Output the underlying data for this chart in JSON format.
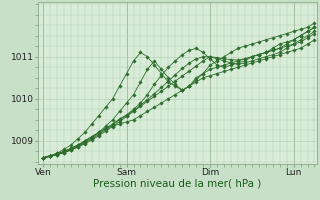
{
  "bg_color": "#c8e0c8",
  "plot_bg_color": "#d8ecd8",
  "grid_color": "#b0ccb0",
  "line_color": "#2d6e2d",
  "marker_color": "#2d6e2d",
  "xlabel": "Pression niveau de la mer( hPa )",
  "xlabel_fontsize": 7.5,
  "yticks": [
    1009,
    1010,
    1011
  ],
  "ylim": [
    1008.45,
    1012.3
  ],
  "xtick_labels": [
    "Ven",
    "Sam",
    "Dim",
    "Lun"
  ],
  "xtick_positions": [
    0,
    36,
    72,
    108
  ],
  "xlim": [
    -2,
    118
  ],
  "sparse_series": [
    {
      "x": [
        0,
        3,
        6,
        9,
        12,
        15,
        18,
        21,
        24,
        27,
        30,
        33,
        36,
        39,
        42,
        45,
        48,
        51,
        54,
        57,
        60,
        63,
        66,
        69,
        72,
        75,
        78,
        81,
        84,
        87,
        90,
        93,
        96,
        99,
        102,
        105,
        108,
        111,
        114,
        117
      ],
      "y": [
        1008.6,
        1008.65,
        1008.7,
        1008.75,
        1008.82,
        1008.9,
        1009.0,
        1009.1,
        1009.2,
        1009.3,
        1009.35,
        1009.4,
        1009.45,
        1009.5,
        1009.6,
        1009.7,
        1009.8,
        1009.9,
        1010.0,
        1010.1,
        1010.2,
        1010.3,
        1010.5,
        1010.6,
        1010.8,
        1010.9,
        1011.0,
        1011.1,
        1011.2,
        1011.25,
        1011.3,
        1011.35,
        1011.4,
        1011.45,
        1011.5,
        1011.55,
        1011.6,
        1011.65,
        1011.7,
        1011.8
      ]
    },
    {
      "x": [
        0,
        3,
        6,
        9,
        12,
        15,
        18,
        21,
        24,
        27,
        30,
        33,
        36,
        39,
        42,
        45,
        48,
        51,
        54,
        57,
        60,
        63,
        66,
        69,
        72,
        75,
        78,
        81,
        84,
        87,
        90,
        93,
        96,
        99,
        102,
        105,
        108,
        111,
        114,
        117
      ],
      "y": [
        1008.6,
        1008.65,
        1008.7,
        1008.8,
        1008.9,
        1009.05,
        1009.2,
        1009.4,
        1009.6,
        1009.8,
        1010.0,
        1010.3,
        1010.6,
        1010.9,
        1011.1,
        1011.0,
        1010.8,
        1010.6,
        1010.4,
        1010.3,
        1010.2,
        1010.3,
        1010.4,
        1010.5,
        1010.55,
        1010.6,
        1010.65,
        1010.7,
        1010.75,
        1010.8,
        1010.85,
        1010.9,
        1010.95,
        1011.0,
        1011.05,
        1011.1,
        1011.15,
        1011.2,
        1011.3,
        1011.4
      ]
    },
    {
      "x": [
        0,
        3,
        6,
        9,
        12,
        15,
        18,
        21,
        24,
        27,
        30,
        33,
        36,
        39,
        42,
        45,
        48,
        51,
        54,
        57,
        60,
        63,
        66,
        69,
        72,
        75,
        78,
        81,
        84,
        87,
        90,
        93,
        96,
        99,
        102,
        105,
        108,
        111,
        114,
        117
      ],
      "y": [
        1008.6,
        1008.63,
        1008.68,
        1008.75,
        1008.82,
        1008.9,
        1009.0,
        1009.1,
        1009.2,
        1009.35,
        1009.5,
        1009.7,
        1009.9,
        1010.1,
        1010.4,
        1010.7,
        1010.9,
        1010.7,
        1010.5,
        1010.35,
        1010.2,
        1010.3,
        1010.45,
        1010.6,
        1010.7,
        1010.75,
        1010.8,
        1010.85,
        1010.9,
        1010.95,
        1011.0,
        1011.05,
        1011.1,
        1011.15,
        1011.2,
        1011.25,
        1011.3,
        1011.35,
        1011.45,
        1011.55
      ]
    },
    {
      "x": [
        0,
        3,
        6,
        9,
        12,
        15,
        18,
        21,
        24,
        27,
        30,
        33,
        36,
        39,
        42,
        45,
        48,
        51,
        54,
        57,
        60,
        63,
        66,
        69,
        72,
        75,
        78,
        81,
        84,
        87,
        90,
        93,
        96,
        99,
        102,
        105,
        108,
        111,
        114,
        117
      ],
      "y": [
        1008.6,
        1008.63,
        1008.68,
        1008.73,
        1008.8,
        1008.88,
        1008.97,
        1009.07,
        1009.18,
        1009.3,
        1009.4,
        1009.52,
        1009.62,
        1009.75,
        1009.9,
        1010.1,
        1010.35,
        1010.55,
        1010.75,
        1010.9,
        1011.05,
        1011.15,
        1011.2,
        1011.1,
        1010.95,
        1010.8,
        1010.75,
        1010.8,
        1010.85,
        1010.9,
        1011.0,
        1011.05,
        1011.1,
        1011.2,
        1011.3,
        1011.35,
        1011.4,
        1011.5,
        1011.6,
        1011.7
      ]
    },
    {
      "x": [
        0,
        3,
        6,
        9,
        12,
        15,
        18,
        21,
        24,
        27,
        30,
        33,
        36,
        39,
        42,
        45,
        48,
        51,
        54,
        57,
        60,
        63,
        66,
        69,
        72,
        75,
        78,
        81,
        84,
        87,
        90,
        93,
        96,
        99,
        102,
        105,
        108,
        111,
        114,
        117
      ],
      "y": [
        1008.6,
        1008.63,
        1008.67,
        1008.72,
        1008.78,
        1008.86,
        1008.95,
        1009.05,
        1009.15,
        1009.27,
        1009.38,
        1009.5,
        1009.6,
        1009.72,
        1009.85,
        1009.98,
        1010.12,
        1010.27,
        1010.42,
        1010.57,
        1010.72,
        1010.85,
        1010.95,
        1011.0,
        1011.0,
        1010.95,
        1010.9,
        1010.85,
        1010.82,
        1010.85,
        1010.9,
        1010.95,
        1011.0,
        1011.05,
        1011.1,
        1011.2,
        1011.3,
        1011.4,
        1011.5,
        1011.6
      ]
    },
    {
      "x": [
        0,
        3,
        6,
        9,
        12,
        15,
        18,
        21,
        24,
        27,
        30,
        33,
        36,
        39,
        42,
        45,
        48,
        51,
        54,
        57,
        60,
        63,
        66,
        69,
        72,
        75,
        78,
        81,
        84,
        87,
        90,
        93,
        96,
        99,
        102,
        105,
        108,
        111,
        114,
        117
      ],
      "y": [
        1008.6,
        1008.63,
        1008.67,
        1008.72,
        1008.78,
        1008.85,
        1008.93,
        1009.02,
        1009.12,
        1009.23,
        1009.34,
        1009.46,
        1009.58,
        1009.7,
        1009.82,
        1009.94,
        1010.06,
        1010.18,
        1010.3,
        1010.42,
        1010.54,
        1010.66,
        1010.78,
        1010.9,
        1011.0,
        1010.98,
        1010.95,
        1010.93,
        1010.92,
        1010.95,
        1011.0,
        1011.05,
        1011.1,
        1011.15,
        1011.2,
        1011.3,
        1011.4,
        1011.5,
        1011.6,
        1011.7
      ]
    }
  ]
}
